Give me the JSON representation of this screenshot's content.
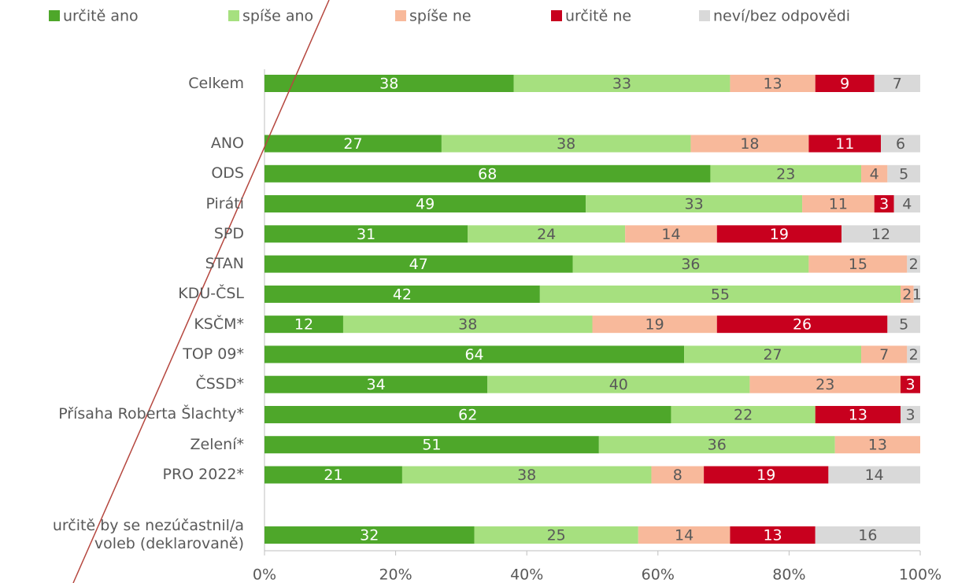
{
  "chart_data": {
    "type": "stacked-bar-horizontal",
    "categories": [
      "Celkem",
      null,
      "ANO",
      "ODS",
      "Piráti",
      "SPD",
      "STAN",
      "KDU-ČSL",
      "KSČM*",
      "TOP 09*",
      "ČSSD*",
      "Přísaha Roberta Šlachty*",
      "Zelení*",
      "PRO 2022*",
      null,
      "určitě by se nezúčastnil/a voleb (deklarovaně)"
    ],
    "series": [
      {
        "name": "určitě ano",
        "color": "#4ea72a",
        "values": [
          38,
          null,
          27,
          68,
          49,
          31,
          47,
          42,
          12,
          64,
          34,
          62,
          51,
          21,
          null,
          32
        ]
      },
      {
        "name": "spíše ano",
        "color": "#a6e07f",
        "values": [
          33,
          null,
          38,
          23,
          33,
          24,
          36,
          55,
          38,
          27,
          40,
          22,
          36,
          38,
          null,
          25
        ]
      },
      {
        "name": "spíše ne",
        "color": "#f8b99b",
        "values": [
          13,
          null,
          18,
          4,
          11,
          14,
          15,
          2,
          19,
          7,
          23,
          null,
          13,
          8,
          null,
          14
        ]
      },
      {
        "name": "určitě ne",
        "color": "#c8001e",
        "values": [
          9,
          null,
          11,
          null,
          3,
          19,
          null,
          null,
          26,
          null,
          3,
          13,
          null,
          19,
          null,
          13
        ]
      },
      {
        "name": "neví/bez odpovědi",
        "color": "#d9d9d9",
        "values": [
          7,
          null,
          6,
          5,
          4,
          12,
          2,
          1,
          5,
          2,
          null,
          3,
          null,
          14,
          null,
          16
        ]
      }
    ],
    "xlim": [
      0,
      100
    ],
    "xticks": [
      {
        "value": 0,
        "label": "0%"
      },
      {
        "value": 20,
        "label": "20%"
      },
      {
        "value": 40,
        "label": "40%"
      },
      {
        "value": 60,
        "label": "60%"
      },
      {
        "value": 80,
        "label": "80%"
      },
      {
        "value": 100,
        "label": "100%"
      }
    ],
    "legend": "top"
  }
}
